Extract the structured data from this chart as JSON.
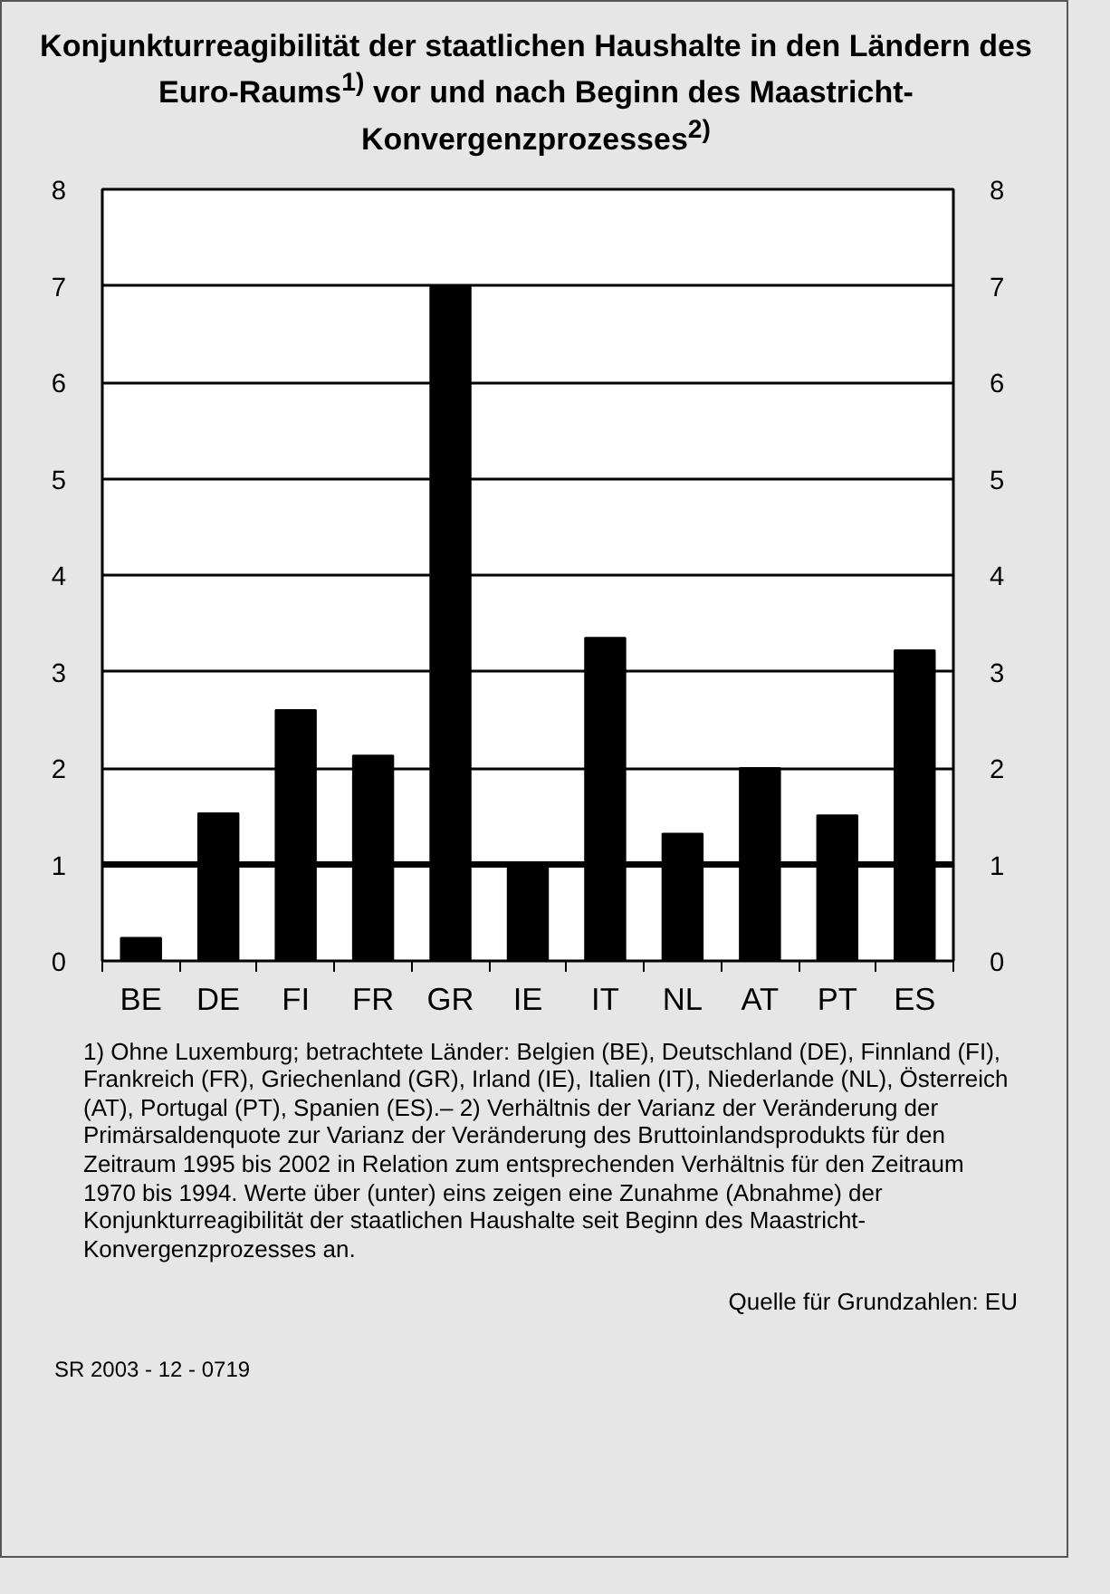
{
  "chart_data": {
    "type": "bar",
    "title": "Konjunkturreagibilität der staatlichen Haushalte in den Ländern des Euro-Raums$^{1)}$ vor und nach Beginn des Maastricht-Konvergenzprozesses$^{2)}$",
    "categories": [
      "BE",
      "DE",
      "FI",
      "FR",
      "GR",
      "IE",
      "IT",
      "NL",
      "AT",
      "PT",
      "ES"
    ],
    "values": [
      0.24,
      1.53,
      2.6,
      2.13,
      7.0,
      1.02,
      3.35,
      1.32,
      2.0,
      1.51,
      3.22
    ],
    "color": "#000000",
    "ylim": [
      0,
      8
    ],
    "yticks": [
      0,
      1,
      2,
      3,
      4,
      5,
      6,
      7,
      8
    ],
    "y2lim": [
      0,
      8
    ],
    "y2ticks": [
      0,
      1,
      2,
      3,
      4,
      5,
      6,
      7,
      8
    ],
    "grid": "y",
    "ref_lines": [
      {
        "axis": "y",
        "value": 1,
        "color": "#000000"
      }
    ],
    "annotations": [
      "1) Ohne Luxemburg; betrachtete Länder: Belgien (BE), Deutschland (DE), Finnland (FI), Frankreich (FR), Griechenland (GR), Irland (IE), Italien (IT), Niederlande (NL), Österreich (AT), Portugal (PT), Spanien (ES).– 2) Verhältnis der Varianz der Veränderung der Primärsaldenquote zur Varianz der Veränderung des Bruttoinlandsprodukts für den Zeitraum 1995 bis 2002 in Relation zum entsprechenden Verhältnis für den Zeitraum 1970 bis 1994. Werte über (unter) eins zeigen eine Zunahme (Abnahme) der Konjunkturreagibilität der staatlichen Haushalte seit Beginn des Maastricht-Konvergenzprozesses an.",
      "Quelle für Grundzahlen: EU",
      "SR 2003 - 12 - 0719"
    ]
  }
}
